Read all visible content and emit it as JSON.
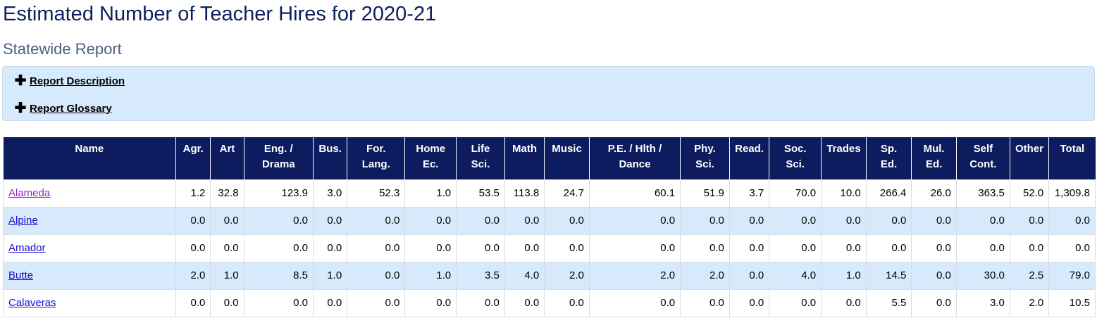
{
  "title": "Estimated Number of Teacher Hires for 2020-21",
  "subtitle": "Statewide Report",
  "accordion": {
    "items": [
      {
        "icon": "plus-icon",
        "label": "Report Description"
      },
      {
        "icon": "plus-icon",
        "label": "Report Glossary"
      }
    ]
  },
  "table": {
    "headers": [
      [
        "Name"
      ],
      [
        "Agr."
      ],
      [
        "Art"
      ],
      [
        "Eng. /",
        "Drama"
      ],
      [
        "Bus."
      ],
      [
        "For.",
        "Lang."
      ],
      [
        "Home",
        "Ec."
      ],
      [
        "Life",
        "Sci."
      ],
      [
        "Math"
      ],
      [
        "Music"
      ],
      [
        "P.E. / Hlth /",
        "Dance"
      ],
      [
        "Phy.",
        "Sci."
      ],
      [
        "Read."
      ],
      [
        "Soc.",
        "Sci."
      ],
      [
        "Trades"
      ],
      [
        "Sp.",
        "Ed."
      ],
      [
        "Mul.",
        "Ed."
      ],
      [
        "Self",
        "Cont."
      ],
      [
        "Other"
      ],
      [
        "Total"
      ]
    ],
    "rows": [
      {
        "name": "Alameda",
        "visited": true,
        "values": [
          "1.2",
          "32.8",
          "123.9",
          "3.0",
          "52.3",
          "1.0",
          "53.5",
          "113.8",
          "24.7",
          "60.1",
          "51.9",
          "3.7",
          "70.0",
          "10.0",
          "266.4",
          "26.0",
          "363.5",
          "52.0",
          "1,309.8"
        ]
      },
      {
        "name": "Alpine",
        "visited": false,
        "values": [
          "0.0",
          "0.0",
          "0.0",
          "0.0",
          "0.0",
          "0.0",
          "0.0",
          "0.0",
          "0.0",
          "0.0",
          "0.0",
          "0.0",
          "0.0",
          "0.0",
          "0.0",
          "0.0",
          "0.0",
          "0.0",
          "0.0"
        ]
      },
      {
        "name": "Amador",
        "visited": false,
        "values": [
          "0.0",
          "0.0",
          "0.0",
          "0.0",
          "0.0",
          "0.0",
          "0.0",
          "0.0",
          "0.0",
          "0.0",
          "0.0",
          "0.0",
          "0.0",
          "0.0",
          "0.0",
          "0.0",
          "0.0",
          "0.0",
          "0.0"
        ]
      },
      {
        "name": "Butte",
        "visited": false,
        "values": [
          "2.0",
          "1.0",
          "8.5",
          "1.0",
          "0.0",
          "1.0",
          "3.5",
          "4.0",
          "2.0",
          "2.0",
          "2.0",
          "0.0",
          "4.0",
          "1.0",
          "14.5",
          "0.0",
          "30.0",
          "2.5",
          "79.0"
        ]
      },
      {
        "name": "Calaveras",
        "visited": false,
        "values": [
          "0.0",
          "0.0",
          "0.0",
          "0.0",
          "0.0",
          "0.0",
          "0.0",
          "0.0",
          "0.0",
          "0.0",
          "0.0",
          "0.0",
          "0.0",
          "0.0",
          "5.5",
          "0.0",
          "3.0",
          "2.0",
          "10.5"
        ]
      }
    ]
  },
  "colors": {
    "title": "#0f1e5c",
    "subtitle": "#4a6080",
    "header_bg": "#0d1c5e",
    "accordion_bg": "#d6eafc",
    "row_alt_bg": "#d6eafc",
    "link": "#1a0dcc",
    "link_visited": "#9b1fc4"
  }
}
